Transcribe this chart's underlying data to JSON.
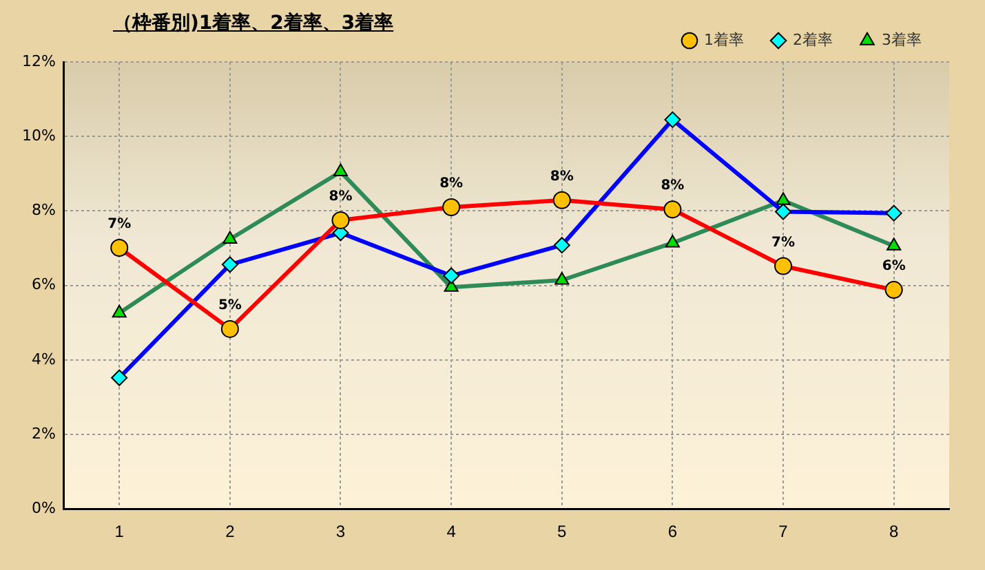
{
  "chart_data": {
    "type": "line",
    "title": "（枠番別)1着率、2着率、3着率",
    "categories": [
      "1",
      "2",
      "3",
      "4",
      "5",
      "6",
      "7",
      "8"
    ],
    "series": [
      {
        "name": "3着率",
        "color": "#2e8b57",
        "marker": "triangle",
        "values": [
          5.26,
          7.24,
          9.05,
          5.95,
          6.14,
          7.14,
          8.28,
          7.06
        ]
      },
      {
        "name": "2着率",
        "color": "#0000ff",
        "marker": "diamond",
        "values": [
          3.52,
          6.56,
          7.41,
          6.26,
          7.08,
          10.45,
          7.98,
          7.94
        ]
      },
      {
        "name": "1着率",
        "color": "#ff0000",
        "marker": "circle",
        "values": [
          7.01,
          4.83,
          7.75,
          8.1,
          8.29,
          8.04,
          6.52,
          5.88
        ],
        "value_labels": [
          "7%",
          "5%",
          "8%",
          "8%",
          "8%",
          "8%",
          "7%",
          "6%"
        ]
      }
    ],
    "ylim": [
      0,
      12
    ],
    "yticks": [
      {
        "value": 0,
        "label": "0%"
      },
      {
        "value": 2,
        "label": "2%"
      },
      {
        "value": 4,
        "label": "4%"
      },
      {
        "value": 6,
        "label": "6%"
      },
      {
        "value": 8,
        "label": "8%"
      },
      {
        "value": 10,
        "label": "10%"
      },
      {
        "value": 12,
        "label": "12%"
      }
    ],
    "grid": true,
    "legend": "top right",
    "line_style": "solid"
  }
}
